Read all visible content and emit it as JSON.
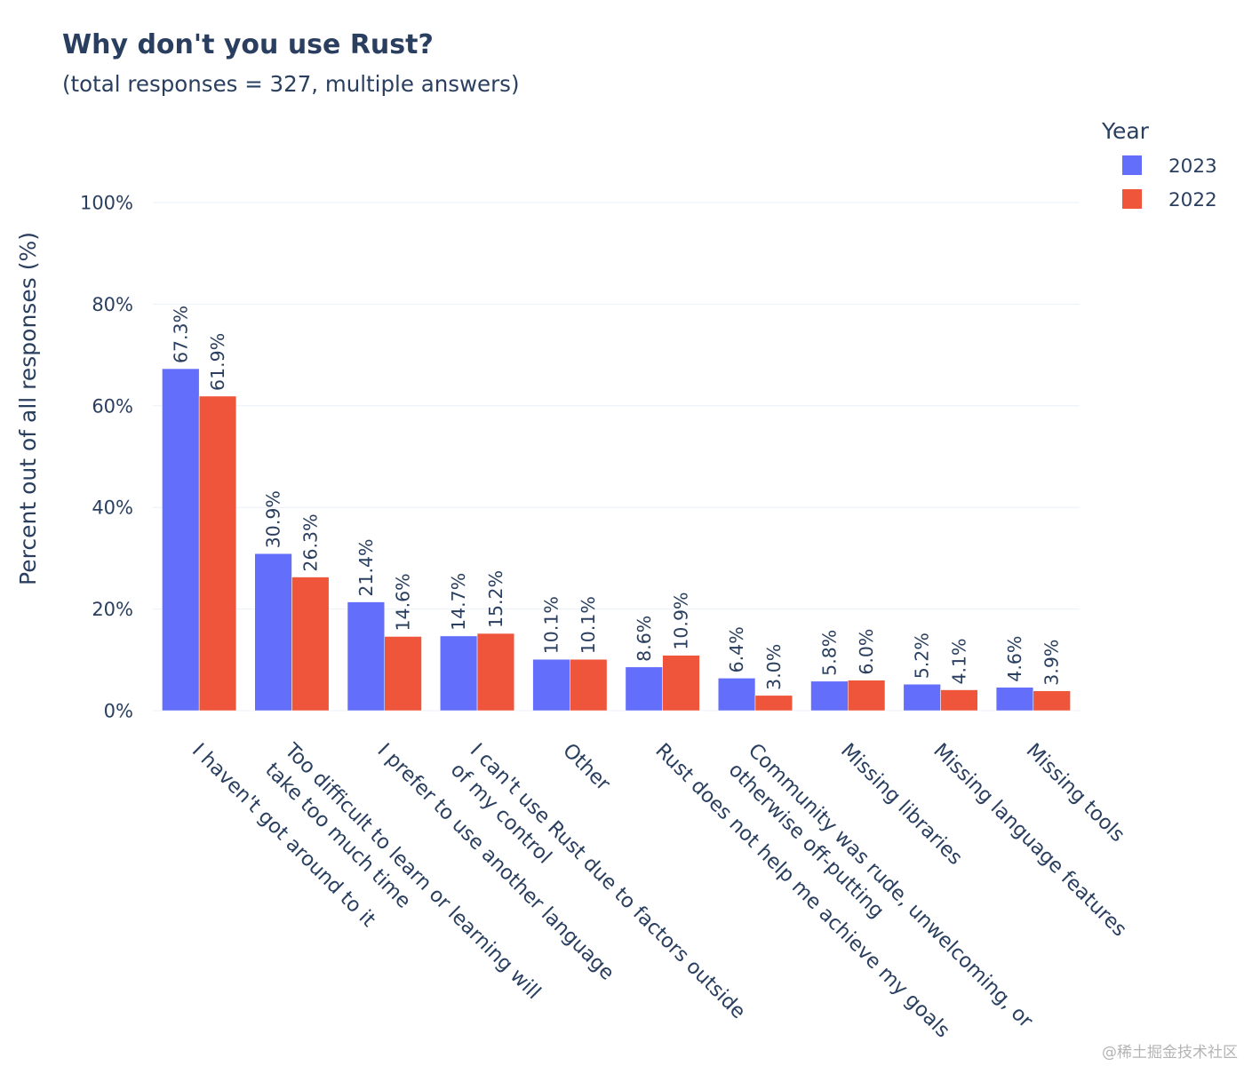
{
  "chart_data": {
    "type": "bar",
    "title": "Why don't you use Rust?",
    "subtitle": "(total responses = 327, multiple answers)",
    "xlabel": "",
    "ylabel": "Percent out of all responses (%)",
    "ylim": [
      0,
      100
    ],
    "yticks": [
      0,
      20,
      40,
      60,
      80,
      100
    ],
    "ytick_labels": [
      "0%",
      "20%",
      "40%",
      "60%",
      "80%",
      "100%"
    ],
    "grid": true,
    "value_label_suffix": "%",
    "legend": {
      "title": "Year",
      "placement": "top-right"
    },
    "categories": [
      "I haven't got around to it",
      "Too difficult to learn or learning will\ntake too much time",
      "I prefer to use another language",
      "I can't use Rust due to factors outside\nof my control",
      "Other",
      "Rust does not help me achieve my goals",
      "Community was rude, unwelcoming, or\notherwise off-putting",
      "Missing libraries",
      "Missing language features",
      "Missing tools"
    ],
    "series": [
      {
        "name": "2023",
        "color": "#636efa",
        "values": [
          67.3,
          30.9,
          21.4,
          14.7,
          10.1,
          8.6,
          6.4,
          5.8,
          5.2,
          4.6
        ]
      },
      {
        "name": "2022",
        "color": "#ef553b",
        "values": [
          61.9,
          26.3,
          14.6,
          15.2,
          10.1,
          10.9,
          3.0,
          6.0,
          4.1,
          3.9
        ]
      }
    ]
  },
  "watermark": "@稀土掘金技术社区"
}
